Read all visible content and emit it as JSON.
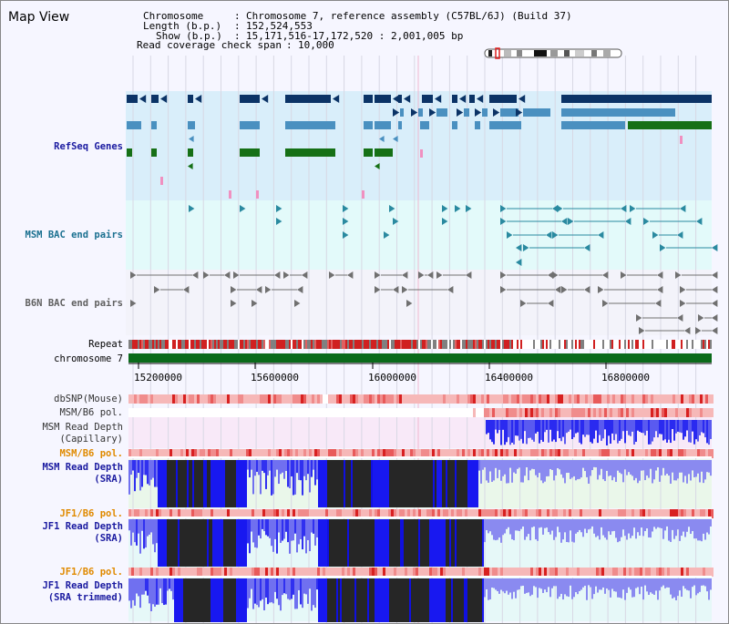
{
  "window": {
    "title": "Map View"
  },
  "header": {
    "chromosome_label": "Chromosome",
    "chromosome_value": "Chromosome 7, reference assembly (C57BL/6J) (Build 37)",
    "length_label": "Length (b.p.)",
    "length_value": "152,524,553",
    "show_label": "Show (b.p.)",
    "show_value": "15,171,516-17,172,520 : 2,001,005 bp",
    "span_label": "Read coverage check span",
    "span_value": "10,000"
  },
  "tracks": {
    "refseq": "RefSeq Genes",
    "msm_bac": "MSM BAC end pairs",
    "b6n_bac": "B6N BAC end pairs",
    "repeat": "Repeat",
    "chromosome": "chromosome 7",
    "dbsnp": "dbSNP(Mouse)",
    "msm_b6_pol_1": "MSM/B6 pol.",
    "msm_depth_cap_1": "MSM Read Depth",
    "msm_depth_cap_2": "(Capillary)",
    "msm_b6_pol_2": "MSM/B6 pol.",
    "msm_depth_sra_1": "MSM Read Depth",
    "msm_depth_sra_2": "(SRA)",
    "jf1_b6_pol_1": "JF1/B6 pol.",
    "jf1_depth_sra_1": "JF1 Read Depth",
    "jf1_depth_sra_2": "(SRA)",
    "jf1_b6_pol_2": "JF1/B6 pol.",
    "jf1_depth_trim_1": "JF1 Read Depth",
    "jf1_depth_trim_2": "(SRA trimmed)"
  },
  "axis": {
    "ticks": [
      "15200000",
      "15600000",
      "16000000",
      "16400000",
      "16800000"
    ]
  },
  "colors": {
    "refseq_bg": "#d9eefa",
    "msm_bac_bg": "#e3fafa",
    "dark_navy": "#0b3366",
    "steel_blue": "#4a90c0",
    "green": "#167016",
    "teal": "#2a8aa0",
    "gray": "#707070",
    "label_blue": "#1a1aa0",
    "label_teal": "#1a7090",
    "label_orange": "#e08a00",
    "chrom_green": "#0a6a1a"
  }
}
